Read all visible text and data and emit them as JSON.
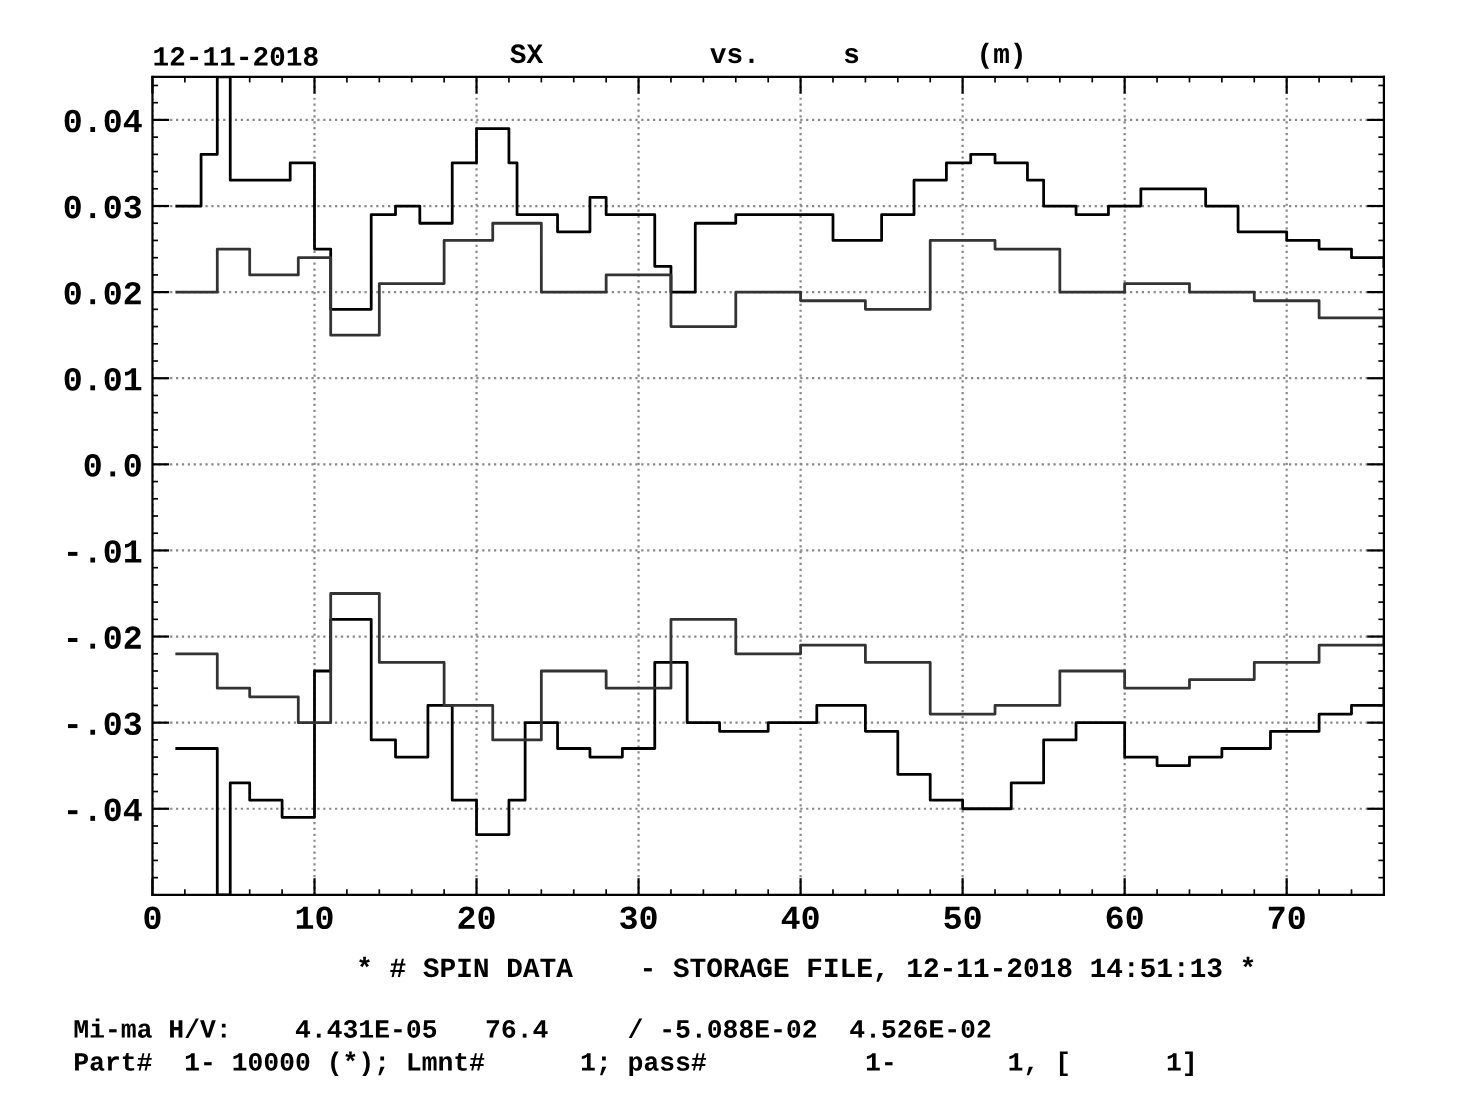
{
  "chart_data": {
    "type": "step",
    "title": "SX          vs.     s       (m)",
    "annotations": [
      "12-11-2018",
      "* # SPIN DATA    - STORAGE FILE, 12-11-2018 14:51:13 *",
      "Mi-ma H/V:    4.431E-05   76.4     / -5.088E-02  4.526E-02",
      "Part#  1- 10000 (*); Lmnt#      1; pass#          1-       1, [      1]"
    ],
    "xlim": [
      0,
      76
    ],
    "ylim": [
      -0.05,
      0.045
    ],
    "xticks": [
      0,
      10,
      20,
      30,
      40,
      50,
      60,
      70
    ],
    "yticks": [
      {
        "value": 0.04,
        "label": "0.04"
      },
      {
        "value": 0.03,
        "label": "0.03"
      },
      {
        "value": 0.02,
        "label": "0.02"
      },
      {
        "value": 0.01,
        "label": "0.01"
      },
      {
        "value": 0,
        "label": "0.0"
      },
      {
        "value": -0.01,
        "label": "-.01"
      },
      {
        "value": -0.02,
        "label": "-.02"
      },
      {
        "value": -0.03,
        "label": "-.03"
      },
      {
        "value": -0.04,
        "label": "-.04"
      }
    ],
    "grid": true,
    "line_style": "solid",
    "marker": "none",
    "series": [
      {
        "color": "#000000",
        "x": [
          1.5,
          3,
          4,
          4.8,
          7,
          8.5,
          10,
          11,
          13.5,
          15,
          16.5,
          18.5,
          20,
          22,
          22.5,
          25,
          27,
          28,
          31,
          32,
          33.5,
          36,
          38,
          42,
          45,
          47,
          49,
          50.5,
          52,
          54,
          55,
          57,
          59,
          61,
          63,
          65,
          67,
          70,
          72,
          74,
          76
        ],
        "values": [
          0.03,
          0.036,
          0.045,
          0.033,
          0.033,
          0.035,
          0.025,
          0.018,
          0.029,
          0.03,
          0.028,
          0.035,
          0.039,
          0.035,
          0.029,
          0.027,
          0.031,
          0.029,
          0.023,
          0.02,
          0.028,
          0.029,
          0.029,
          0.026,
          0.029,
          0.033,
          0.035,
          0.036,
          0.035,
          0.033,
          0.03,
          0.029,
          0.03,
          0.032,
          0.032,
          0.03,
          0.027,
          0.026,
          0.025,
          0.024,
          0.023
        ]
      },
      {
        "color": "#000000",
        "x": [
          1.5,
          3,
          4,
          4.8,
          6,
          8,
          10,
          11,
          13.5,
          15,
          17,
          18.5,
          20,
          22,
          23,
          25,
          27,
          29,
          31,
          33,
          35,
          38,
          41,
          44,
          46,
          48,
          50,
          53,
          55,
          57,
          60,
          62,
          64,
          66,
          69,
          72,
          74,
          76
        ],
        "values": [
          -0.033,
          -0.033,
          -0.05,
          -0.037,
          -0.039,
          -0.041,
          -0.024,
          -0.018,
          -0.032,
          -0.034,
          -0.028,
          -0.039,
          -0.043,
          -0.039,
          -0.03,
          -0.033,
          -0.034,
          -0.033,
          -0.023,
          -0.03,
          -0.031,
          -0.03,
          -0.028,
          -0.031,
          -0.036,
          -0.039,
          -0.04,
          -0.037,
          -0.032,
          -0.03,
          -0.034,
          -0.035,
          -0.034,
          -0.033,
          -0.031,
          -0.029,
          -0.028,
          -0.026
        ]
      },
      {
        "color": "#333333",
        "x": [
          1.5,
          4,
          6,
          9,
          11,
          14,
          18,
          21,
          24,
          28,
          32,
          36,
          40,
          44,
          48,
          52,
          56,
          60,
          64,
          68,
          72,
          76
        ],
        "values": [
          0.02,
          0.025,
          0.022,
          0.024,
          0.015,
          0.021,
          0.026,
          0.028,
          0.02,
          0.022,
          0.016,
          0.02,
          0.019,
          0.018,
          0.026,
          0.025,
          0.02,
          0.021,
          0.02,
          0.019,
          0.017,
          0.016
        ]
      },
      {
        "color": "#333333",
        "x": [
          1.5,
          4,
          6,
          9,
          11,
          14,
          18,
          21,
          24,
          28,
          32,
          36,
          40,
          44,
          48,
          52,
          56,
          60,
          64,
          68,
          72,
          76
        ],
        "values": [
          -0.022,
          -0.026,
          -0.027,
          -0.03,
          -0.015,
          -0.023,
          -0.028,
          -0.032,
          -0.024,
          -0.026,
          -0.018,
          -0.022,
          -0.021,
          -0.023,
          -0.029,
          -0.028,
          -0.024,
          -0.026,
          -0.025,
          -0.023,
          -0.021,
          -0.02
        ]
      }
    ]
  }
}
